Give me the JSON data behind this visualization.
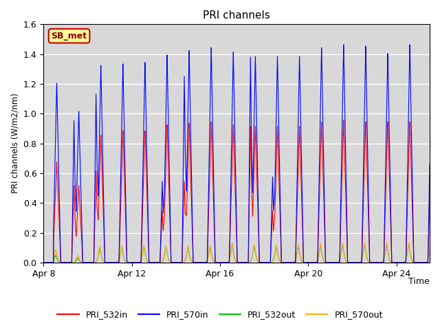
{
  "title": "PRI channels",
  "xlabel": "Time",
  "ylabel": "PRI channels (W/m2/nm)",
  "ylim": [
    0,
    1.6
  ],
  "yticks": [
    0.0,
    0.2,
    0.4,
    0.6,
    0.8,
    1.0,
    1.2,
    1.4,
    1.6
  ],
  "xtick_labels": [
    "Apr 8",
    "Apr 12",
    "Apr 16",
    "Apr 20",
    "Apr 24"
  ],
  "xtick_positions": [
    0,
    4,
    8,
    12,
    16
  ],
  "xlim": [
    0,
    17.5
  ],
  "annotation_label": "SB_met",
  "legend_entries": [
    "PRI_532in",
    "PRI_570in",
    "PRI_532out",
    "PRI_570out"
  ],
  "colors": {
    "PRI_532in": "#ff0000",
    "PRI_570in": "#0000ff",
    "PRI_532out": "#00cc00",
    "PRI_570out": "#ffaa00"
  },
  "bg_color": "#d8d8d8",
  "n_days": 18,
  "peak_532in": [
    0.68,
    0.52,
    0.86,
    0.89,
    0.89,
    0.93,
    0.94,
    0.95,
    0.93,
    0.92,
    0.92,
    0.92,
    0.95,
    0.96,
    0.95,
    0.95,
    0.95,
    0.95
  ],
  "peak2_532in": [
    0.0,
    0.52,
    0.62,
    0.0,
    0.0,
    0.35,
    0.55,
    0.0,
    0.0,
    0.92,
    0.35,
    0.0,
    0.0,
    0.0,
    0.0,
    0.0,
    0.0,
    0.0
  ],
  "peak_570in": [
    1.21,
    1.02,
    1.33,
    1.34,
    1.35,
    1.4,
    1.43,
    1.45,
    1.42,
    1.39,
    1.39,
    1.39,
    1.45,
    1.47,
    1.46,
    1.41,
    1.47,
    1.47
  ],
  "peak2_570in": [
    0.0,
    0.96,
    1.14,
    0.0,
    0.0,
    0.55,
    1.26,
    0.0,
    0.0,
    1.39,
    0.58,
    0.0,
    0.0,
    0.0,
    0.0,
    0.0,
    0.0,
    0.0
  ],
  "peak_532out": [
    0.05,
    0.03,
    0.1,
    0.11,
    0.11,
    0.11,
    0.11,
    0.11,
    0.13,
    0.12,
    0.12,
    0.12,
    0.12,
    0.13,
    0.13,
    0.13,
    0.13,
    0.13
  ],
  "peak_570out": [
    0.09,
    0.05,
    0.11,
    0.11,
    0.11,
    0.11,
    0.11,
    0.11,
    0.13,
    0.12,
    0.12,
    0.12,
    0.13,
    0.13,
    0.13,
    0.13,
    0.13,
    0.13
  ],
  "pts_per_day": 500
}
